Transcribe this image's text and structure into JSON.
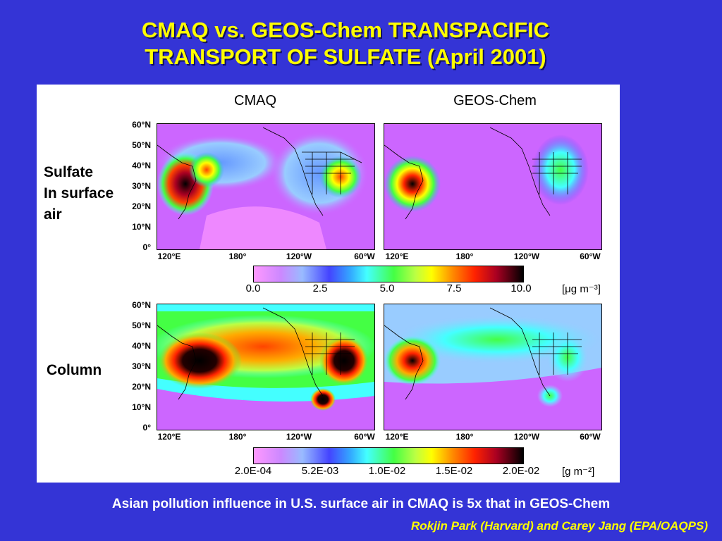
{
  "title_line1": "CMAQ vs. GEOS-Chem TRANSPACIFIC",
  "title_line2": "TRANSPORT OF SULFATE (April 2001)",
  "columns": {
    "left": "CMAQ",
    "right": "GEOS-Chem"
  },
  "rows": {
    "surface": {
      "line1": "Sulfate",
      "line2": "In surface",
      "line3": "air"
    },
    "column": "Column"
  },
  "lat_ticks": [
    "60°N",
    "50°N",
    "40°N",
    "30°N",
    "20°N",
    "10°N",
    "0°"
  ],
  "lon_ticks": [
    "120°E",
    "180°",
    "120°W",
    "60°W"
  ],
  "surface_colorbar": {
    "ticks": [
      "0.0",
      "2.5",
      "5.0",
      "7.5",
      "10.0"
    ],
    "unit": "[μg m⁻³]"
  },
  "column_colorbar": {
    "ticks": [
      "2.0E-04",
      "5.2E-03",
      "1.0E-02",
      "1.5E-02",
      "2.0E-02"
    ],
    "unit": "[g m⁻²]"
  },
  "subtitle": "Asian pollution influence in U.S. surface air in CMAQ is 5x that in GEOS-Chem",
  "credit": "Rokjin Park (Harvard) and Carey Jang (EPA/OAQPS)",
  "colors": {
    "background": "#3434d6",
    "title": "#ffff00",
    "low": "#cc66ff",
    "high": "#000000"
  }
}
